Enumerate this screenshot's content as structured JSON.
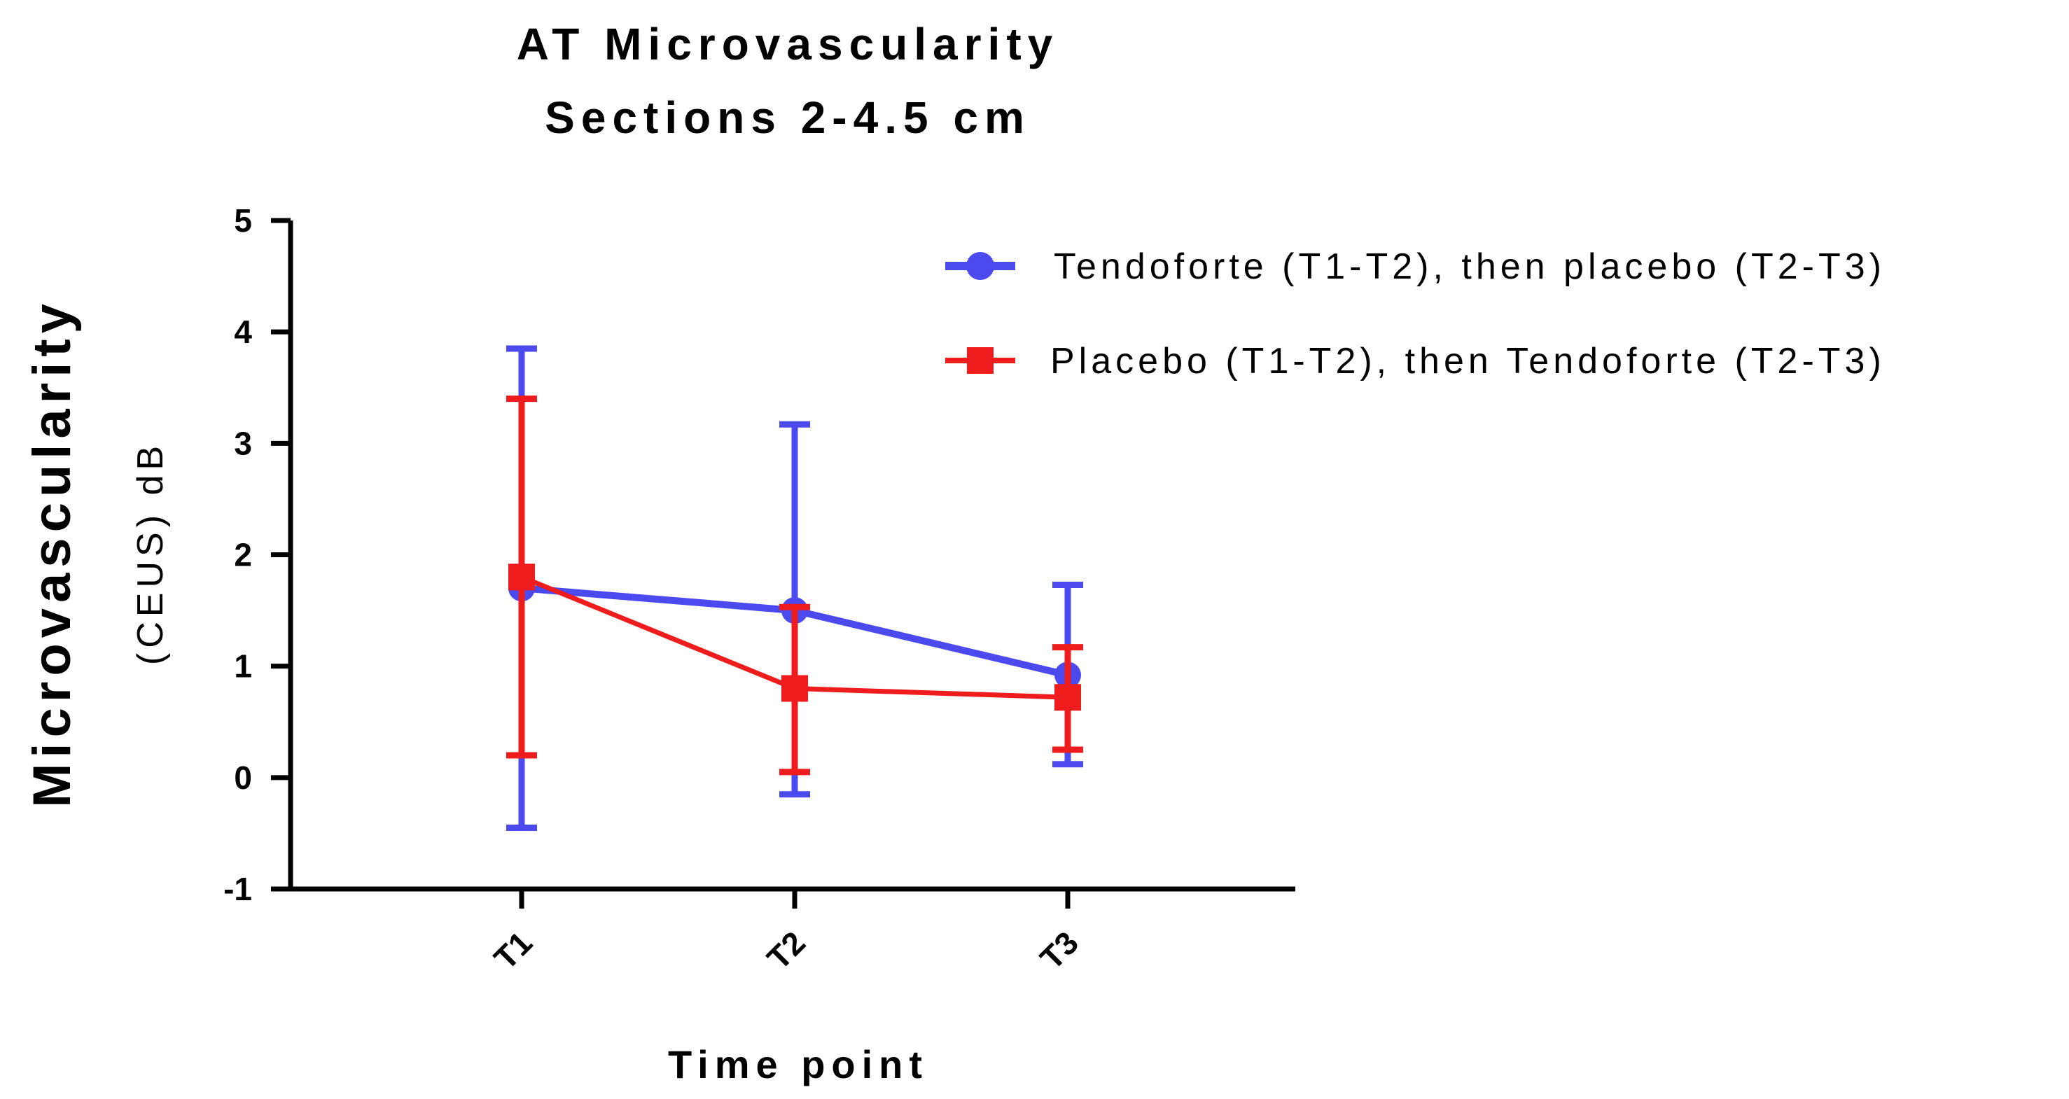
{
  "chart_data": {
    "type": "line",
    "title": "AT Microvascularity",
    "subtitle": "Sections 2-4.5 cm",
    "ylabel": "Microvascularity",
    "ylabel_units": "(CEUS) dB",
    "xlabel": "Time point",
    "categories": [
      "T1",
      "T2",
      "T3"
    ],
    "ylim": [
      -1,
      5
    ],
    "yticks": [
      -1,
      0,
      1,
      2,
      3,
      4,
      5
    ],
    "grid": false,
    "legend_position": "top-right",
    "series": [
      {
        "name": "Tendoforte (T1-T2), then placebo (T2-T3)",
        "color": "#4a4aee",
        "marker": "circle",
        "values": [
          1.7,
          1.5,
          0.92
        ],
        "err_low": [
          -0.45,
          -0.15,
          0.12
        ],
        "err_high": [
          3.85,
          3.17,
          1.73
        ]
      },
      {
        "name": "Placebo (T1-T2), then Tendoforte (T2-T3)",
        "color": "#ee1c1c",
        "marker": "square",
        "values": [
          1.8,
          0.8,
          0.72
        ],
        "err_low": [
          0.2,
          0.05,
          0.25
        ],
        "err_high": [
          3.4,
          1.53,
          1.17
        ]
      }
    ]
  }
}
